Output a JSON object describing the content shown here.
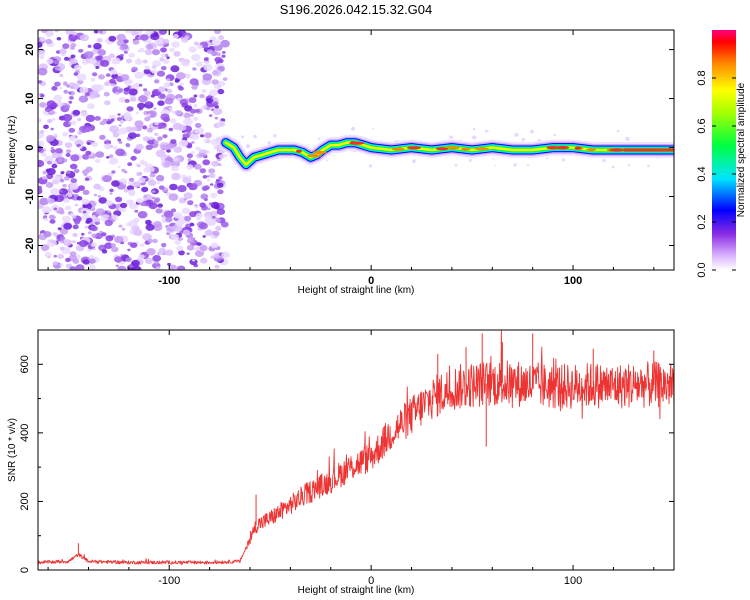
{
  "chart_data": [
    {
      "type": "heatmap",
      "title": "S196.2026.042.15.32.G04",
      "xlabel": "Height of straight line (km)",
      "ylabel": "Frequency (Hz)",
      "xlim": [
        -165,
        150
      ],
      "ylim": [
        -25,
        24
      ],
      "xticks": [
        -100,
        0,
        100
      ],
      "xtick_labels": [
        "-100",
        "0",
        "100"
      ],
      "yticks": [
        -20,
        -10,
        0,
        10,
        20
      ],
      "ytick_labels": [
        "-20",
        "-10",
        "0",
        "10",
        "20"
      ],
      "noise_region_xmax": -72,
      "ridge": {
        "x": [
          -72,
          -68,
          -65,
          -62,
          -58,
          -54,
          -50,
          -46,
          -42,
          -38,
          -34,
          -30,
          -27,
          -24,
          -20,
          -16,
          -12,
          -8,
          -4,
          0,
          10,
          20,
          30,
          40,
          50,
          60,
          70,
          80,
          90,
          100,
          110,
          120,
          130,
          140,
          150
        ],
        "freq_hz": [
          1,
          0,
          -2,
          -3.5,
          -2,
          -1.5,
          -1,
          -0.5,
          -0.5,
          -0.5,
          -1,
          -2,
          -1.5,
          -0.5,
          0.5,
          0.5,
          1,
          1,
          0.5,
          0,
          -0.5,
          0,
          -0.5,
          0,
          -0.5,
          0,
          -0.5,
          -0.5,
          0,
          0,
          -0.5,
          -0.5,
          -0.5,
          -0.5,
          -0.5
        ]
      },
      "colorbar": {
        "label": "Normalized spectral amplitude",
        "range": [
          0,
          1
        ],
        "ticks": [
          0.0,
          0.2,
          0.4,
          0.6,
          0.8
        ],
        "tick_labels": [
          "0.0",
          "0.2",
          "0.4",
          "0.6",
          "0.8"
        ]
      }
    },
    {
      "type": "line",
      "title": "",
      "xlabel": "Height of straight line (km)",
      "ylabel": "SNR (10 * v/v)",
      "xlim": [
        -165,
        150
      ],
      "ylim": [
        0,
        700
      ],
      "xticks": [
        -100,
        0,
        100
      ],
      "xtick_labels": [
        "-100",
        "0",
        "100"
      ],
      "yticks": [
        0,
        200,
        400,
        600
      ],
      "ytick_labels": [
        "0",
        "200",
        "400",
        "600"
      ],
      "color": "#ee3333",
      "trend": {
        "x": [
          -165,
          -150,
          -145,
          -140,
          -120,
          -100,
          -80,
          -65,
          -60,
          -57,
          -50,
          -40,
          -30,
          -20,
          -10,
          0,
          10,
          20,
          30,
          40,
          50,
          60,
          70,
          80,
          90,
          100,
          110,
          120,
          130,
          140,
          150
        ],
        "y": [
          22,
          25,
          45,
          25,
          22,
          22,
          22,
          25,
          90,
          130,
          150,
          190,
          230,
          260,
          300,
          330,
          400,
          450,
          500,
          530,
          540,
          545,
          545,
          540,
          535,
          535,
          540,
          535,
          540,
          540,
          540
        ]
      },
      "spikes": [
        {
          "x": -145,
          "y": 78
        },
        {
          "x": -57,
          "y": 220
        },
        {
          "x": 47,
          "y": 650
        },
        {
          "x": 55,
          "y": 690
        },
        {
          "x": 65,
          "y": 665
        },
        {
          "x": 80,
          "y": 690
        },
        {
          "x": 33,
          "y": 630
        },
        {
          "x": 110,
          "y": 645
        },
        {
          "x": 140,
          "y": 640
        },
        {
          "x": 57,
          "y": 360
        }
      ]
    }
  ]
}
